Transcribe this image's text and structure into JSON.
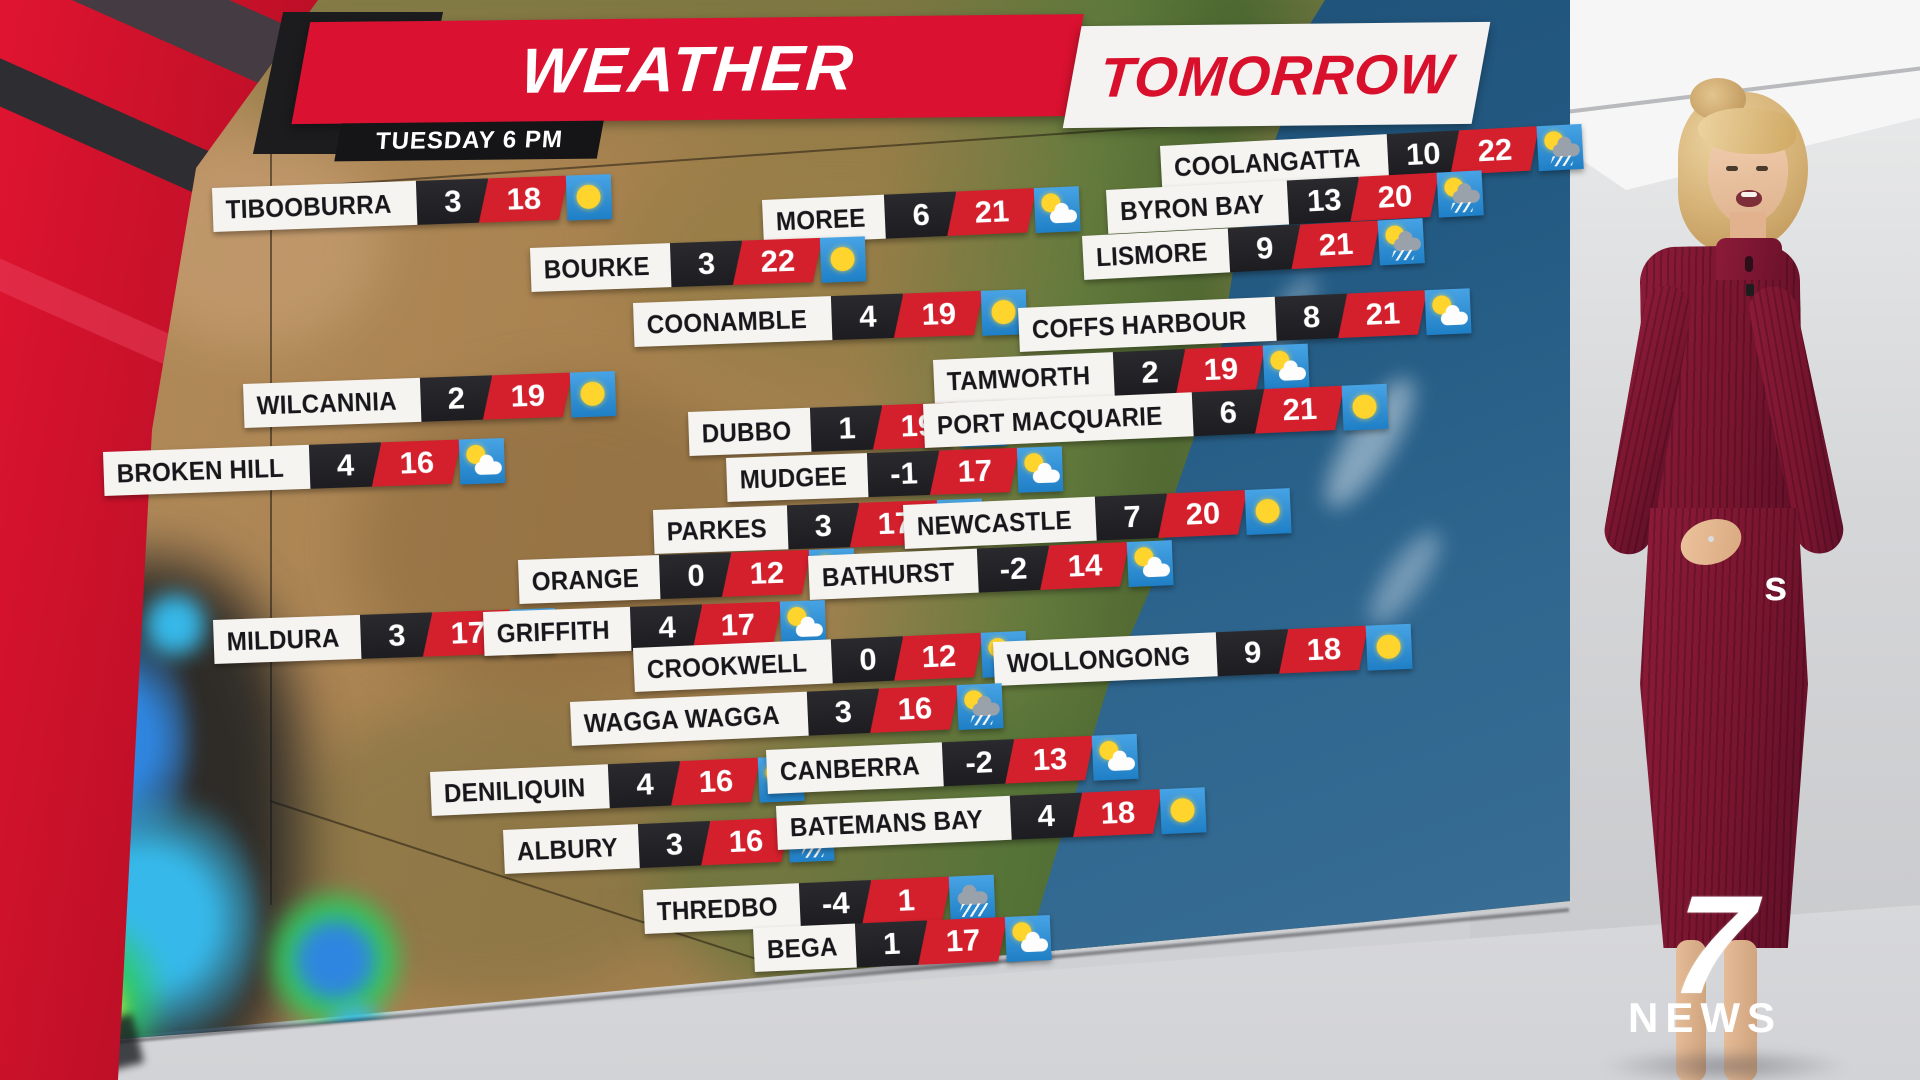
{
  "header": {
    "title": "WEATHER",
    "subtitle": "TOMORROW",
    "time_label": "TUESDAY 6 PM"
  },
  "branding": {
    "channel_glyph": "7",
    "channel_name": "NEWS"
  },
  "fragment_text": "s",
  "colors": {
    "accent_red": "#d8102c",
    "max_temp_red": "#d41f2c",
    "min_temp_black": "#1d1d21",
    "icon_blue": "#2f8fd4",
    "label_bg": "#f5f4f1",
    "ocean_blue": "#235a83",
    "dress_maroon": "#7a152f"
  },
  "stations": [
    {
      "name": "COOLANGATTA",
      "min": "10",
      "max": "22",
      "icon": "showers"
    },
    {
      "name": "BYRON BAY",
      "min": "13",
      "max": "20",
      "icon": "showers"
    },
    {
      "name": "LISMORE",
      "min": "9",
      "max": "21",
      "icon": "showers"
    },
    {
      "name": "TIBOOBURRA",
      "min": "3",
      "max": "18",
      "icon": "sunny"
    },
    {
      "name": "MOREE",
      "min": "6",
      "max": "21",
      "icon": "partly"
    },
    {
      "name": "BOURKE",
      "min": "3",
      "max": "22",
      "icon": "sunny"
    },
    {
      "name": "COONAMBLE",
      "min": "4",
      "max": "19",
      "icon": "sunny"
    },
    {
      "name": "COFFS HARBOUR",
      "min": "8",
      "max": "21",
      "icon": "partly"
    },
    {
      "name": "TAMWORTH",
      "min": "2",
      "max": "19",
      "icon": "partly"
    },
    {
      "name": "WILCANNIA",
      "min": "2",
      "max": "19",
      "icon": "sunny"
    },
    {
      "name": "DUBBO",
      "min": "1",
      "max": "19",
      "icon": "sunny"
    },
    {
      "name": "PORT MACQUARIE",
      "min": "6",
      "max": "21",
      "icon": "sunny"
    },
    {
      "name": "BROKEN HILL",
      "min": "4",
      "max": "16",
      "icon": "partly"
    },
    {
      "name": "MUDGEE",
      "min": "-1",
      "max": "17",
      "icon": "partly"
    },
    {
      "name": "PARKES",
      "min": "3",
      "max": "17",
      "icon": "partly"
    },
    {
      "name": "NEWCASTLE",
      "min": "7",
      "max": "20",
      "icon": "sunny"
    },
    {
      "name": "ORANGE",
      "min": "0",
      "max": "12",
      "icon": "partly"
    },
    {
      "name": "BATHURST",
      "min": "-2",
      "max": "14",
      "icon": "partly"
    },
    {
      "name": "MILDURA",
      "min": "3",
      "max": "17",
      "icon": "showers"
    },
    {
      "name": "GRIFFITH",
      "min": "4",
      "max": "17",
      "icon": "partly"
    },
    {
      "name": "CROOKWELL",
      "min": "0",
      "max": "12",
      "icon": "partly"
    },
    {
      "name": "WOLLONGONG",
      "min": "9",
      "max": "18",
      "icon": "sunny"
    },
    {
      "name": "WAGGA WAGGA",
      "min": "3",
      "max": "16",
      "icon": "showers"
    },
    {
      "name": "DENILIQUIN",
      "min": "4",
      "max": "16",
      "icon": "partly"
    },
    {
      "name": "CANBERRA",
      "min": "-2",
      "max": "13",
      "icon": "partly"
    },
    {
      "name": "ALBURY",
      "min": "3",
      "max": "16",
      "icon": "showers"
    },
    {
      "name": "BATEMANS BAY",
      "min": "4",
      "max": "18",
      "icon": "sunny"
    },
    {
      "name": "THREDBO",
      "min": "-4",
      "max": "1",
      "icon": "rain"
    },
    {
      "name": "BEGA",
      "min": "1",
      "max": "17",
      "icon": "partly"
    }
  ]
}
